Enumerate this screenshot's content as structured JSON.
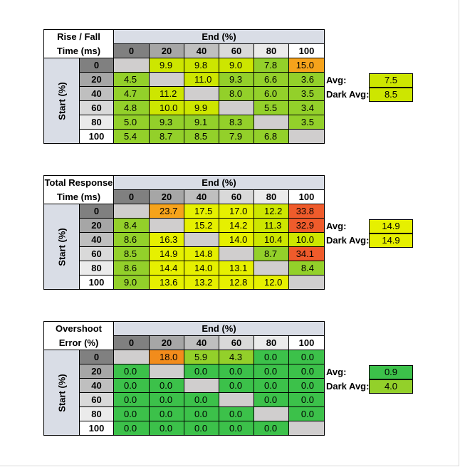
{
  "tables": [
    {
      "title_line1": "Rise / Fall",
      "title_line2": "Time (ms)",
      "end_label": "End (%)",
      "start_label": "Start (%)",
      "columns": [
        "0",
        "20",
        "40",
        "60",
        "80",
        "100"
      ],
      "rows": [
        {
          "label": "0",
          "cells": [
            "",
            "9.9",
            "9.8",
            "9.0",
            "7.8",
            "15.0"
          ]
        },
        {
          "label": "20",
          "cells": [
            "4.5",
            "",
            "11.0",
            "9.3",
            "6.6",
            "3.6"
          ]
        },
        {
          "label": "40",
          "cells": [
            "4.7",
            "11.2",
            "",
            "8.0",
            "6.0",
            "3.5"
          ]
        },
        {
          "label": "60",
          "cells": [
            "4.8",
            "10.0",
            "9.9",
            "",
            "5.5",
            "3.4"
          ]
        },
        {
          "label": "80",
          "cells": [
            "5.0",
            "9.3",
            "9.1",
            "8.3",
            "",
            "3.5"
          ]
        },
        {
          "label": "100",
          "cells": [
            "5.4",
            "8.7",
            "8.5",
            "7.9",
            "6.8",
            ""
          ]
        }
      ],
      "colors": [
        [
          "gray",
          "ly",
          "ly",
          "ly",
          "lg",
          "o2"
        ],
        [
          "lg",
          "gray",
          "ly",
          "lg",
          "lg",
          "lg"
        ],
        [
          "lg",
          "ly",
          "gray",
          "lg",
          "lg",
          "lg"
        ],
        [
          "lg",
          "ly",
          "ly",
          "gray",
          "lg",
          "lg"
        ],
        [
          "lg",
          "lg",
          "lg",
          "lg",
          "gray",
          "lg"
        ],
        [
          "lg",
          "lg",
          "lg",
          "lg",
          "lg",
          "gray"
        ]
      ],
      "avg_label": "Avg:",
      "avg_value": "7.5",
      "avg_color": "ly",
      "dark_avg_label": "Dark Avg:",
      "dark_avg_value": "8.5",
      "dark_avg_color": "ly"
    },
    {
      "title_line1": "Total Response",
      "title_line2": "Time (ms)",
      "end_label": "End (%)",
      "start_label": "Start (%)",
      "columns": [
        "0",
        "20",
        "40",
        "60",
        "80",
        "100"
      ],
      "rows": [
        {
          "label": "0",
          "cells": [
            "",
            "23.7",
            "17.5",
            "17.0",
            "12.2",
            "33.8"
          ]
        },
        {
          "label": "20",
          "cells": [
            "8.4",
            "",
            "15.2",
            "14.2",
            "11.3",
            "32.9"
          ]
        },
        {
          "label": "40",
          "cells": [
            "8.6",
            "16.3",
            "",
            "14.0",
            "10.4",
            "10.0"
          ]
        },
        {
          "label": "60",
          "cells": [
            "8.5",
            "14.9",
            "14.8",
            "",
            "8.7",
            "34.1"
          ]
        },
        {
          "label": "80",
          "cells": [
            "8.6",
            "14.4",
            "14.0",
            "13.1",
            "",
            "8.4"
          ]
        },
        {
          "label": "100",
          "cells": [
            "9.0",
            "13.6",
            "13.2",
            "12.8",
            "12.0",
            ""
          ]
        }
      ],
      "colors": [
        [
          "gray",
          "o2",
          "yellow",
          "yellow",
          "ly",
          "r"
        ],
        [
          "lg",
          "gray",
          "yellow",
          "yellow",
          "ly",
          "r"
        ],
        [
          "lg",
          "yellow",
          "gray",
          "yellow",
          "ly",
          "ly"
        ],
        [
          "lg",
          "yellow",
          "yellow",
          "gray",
          "lg",
          "r"
        ],
        [
          "lg",
          "yellow",
          "yellow",
          "yellow",
          "gray",
          "lg"
        ],
        [
          "lg",
          "yellow",
          "yellow",
          "yellow",
          "yellow",
          "gray"
        ]
      ],
      "avg_label": "Avg:",
      "avg_value": "14.9",
      "avg_color": "yellow",
      "dark_avg_label": "Dark Avg:",
      "dark_avg_value": "14.9",
      "dark_avg_color": "yellow"
    },
    {
      "title_line1": "Overshoot",
      "title_line2": "Error (%)",
      "end_label": "End (%)",
      "start_label": "Start (%)",
      "columns": [
        "0",
        "20",
        "40",
        "60",
        "80",
        "100"
      ],
      "rows": [
        {
          "label": "0",
          "cells": [
            "",
            "18.0",
            "5.9",
            "4.3",
            "0.0",
            "0.0"
          ]
        },
        {
          "label": "20",
          "cells": [
            "0.0",
            "",
            "0.0",
            "0.0",
            "0.0",
            "0.0"
          ]
        },
        {
          "label": "40",
          "cells": [
            "0.0",
            "0.0",
            "",
            "0.0",
            "0.0",
            "0.0"
          ]
        },
        {
          "label": "60",
          "cells": [
            "0.0",
            "0.0",
            "0.0",
            "",
            "0.0",
            "0.0"
          ]
        },
        {
          "label": "80",
          "cells": [
            "0.0",
            "0.0",
            "0.0",
            "0.0",
            "",
            "0.0"
          ]
        },
        {
          "label": "100",
          "cells": [
            "0.0",
            "0.0",
            "0.0",
            "0.0",
            "0.0",
            ""
          ]
        }
      ],
      "colors": [
        [
          "gray",
          "o",
          "lg",
          "lg",
          "g",
          "g"
        ],
        [
          "g",
          "gray",
          "g",
          "g",
          "g",
          "g"
        ],
        [
          "g",
          "g",
          "gray",
          "g",
          "g",
          "g"
        ],
        [
          "g",
          "g",
          "g",
          "gray",
          "g",
          "g"
        ],
        [
          "g",
          "g",
          "g",
          "g",
          "gray",
          "g"
        ],
        [
          "g",
          "g",
          "g",
          "g",
          "g",
          "gray"
        ]
      ],
      "avg_label": "Avg:",
      "avg_value": "0.9",
      "avg_color": "g",
      "dark_avg_label": "Dark Avg:",
      "dark_avg_value": "4.0",
      "dark_avg_color": "lg"
    }
  ]
}
